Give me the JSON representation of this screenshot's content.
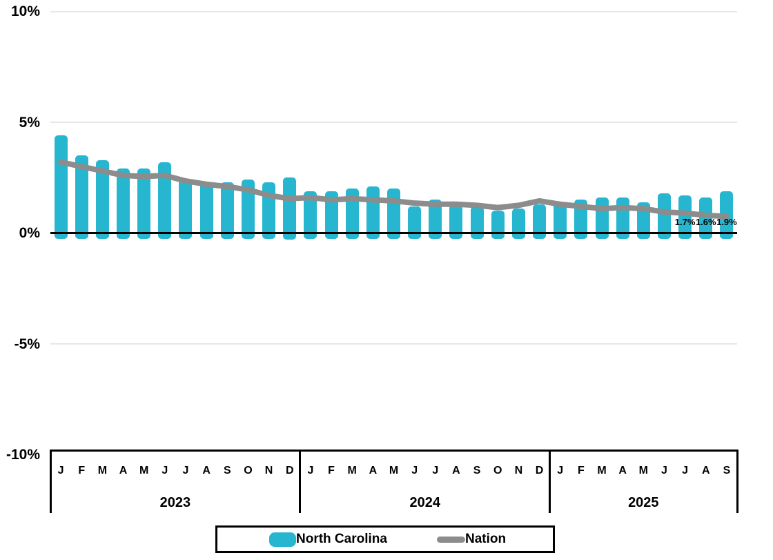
{
  "chart_data": {
    "type": "combo",
    "title": "",
    "x_axis": {
      "month_labels": [
        "J",
        "F",
        "M",
        "A",
        "M",
        "J",
        "J",
        "A",
        "S",
        "O",
        "N",
        "D",
        "J",
        "F",
        "M",
        "A",
        "M",
        "J",
        "J",
        "A",
        "S",
        "O",
        "N",
        "D",
        "J",
        "F",
        "M",
        "A",
        "M",
        "J",
        "J",
        "A",
        "S"
      ],
      "year_groups": [
        {
          "label": "2023",
          "months": 12
        },
        {
          "label": "2024",
          "months": 12
        },
        {
          "label": "2025",
          "months": 9
        }
      ]
    },
    "y_axis": {
      "ticks": [
        {
          "label": "10%",
          "value": 10
        },
        {
          "label": "5%",
          "value": 5
        },
        {
          "label": "0%",
          "value": 0
        },
        {
          "label": "-5%",
          "value": -5
        },
        {
          "label": "-10%",
          "value": -10
        }
      ],
      "ylim": [
        -10,
        10
      ],
      "grid": true
    },
    "series": [
      {
        "name": "North Carolina",
        "type": "bar",
        "color": "#27B6CF",
        "values": [
          4.4,
          3.5,
          3.3,
          2.9,
          2.9,
          3.2,
          2.4,
          2.3,
          2.3,
          2.4,
          2.3,
          2.5,
          1.9,
          1.9,
          2.0,
          2.1,
          2.0,
          1.2,
          1.5,
          1.3,
          1.2,
          1.0,
          1.1,
          1.3,
          1.4,
          1.5,
          1.6,
          1.6,
          1.4,
          1.8,
          1.7,
          1.6,
          1.9
        ]
      },
      {
        "name": "Nation",
        "type": "line",
        "color": "#8C8C8C",
        "values": [
          3.2,
          3.0,
          2.8,
          2.6,
          2.55,
          2.6,
          2.35,
          2.2,
          2.1,
          1.95,
          1.7,
          1.55,
          1.6,
          1.5,
          1.55,
          1.5,
          1.45,
          1.35,
          1.3,
          1.3,
          1.25,
          1.15,
          1.25,
          1.45,
          1.3,
          1.2,
          1.1,
          1.15,
          1.1,
          0.95,
          0.9,
          0.8,
          0.75
        ]
      }
    ],
    "point_labels": [
      {
        "index": 30,
        "text": "1.7%"
      },
      {
        "index": 31,
        "text": "1.6%"
      },
      {
        "index": 32,
        "text": "1.9%"
      }
    ],
    "legend_position": "bottom"
  },
  "legend": {
    "items": [
      {
        "label": "North Carolina",
        "swatch": "bar",
        "color": "#27B6CF"
      },
      {
        "label": "Nation",
        "swatch": "line",
        "color": "#8C8C8C"
      }
    ]
  },
  "colors": {
    "bar": "#27B6CF",
    "line": "#8C8C8C",
    "gridline": "#e7e7e7",
    "axis": "#000000"
  }
}
